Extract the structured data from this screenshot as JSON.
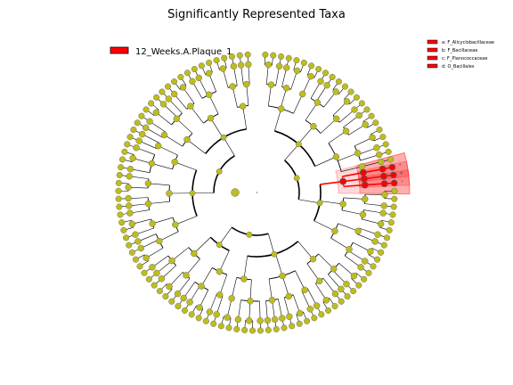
{
  "chart_data": {
    "type": "cladogram",
    "title": "Significantly Represented Taxa",
    "group_legend": {
      "label": "12_Weeks.A.Plaque_1",
      "color": "#ff0000"
    },
    "key": [
      {
        "letter": "a",
        "label": "a: F_Alicyclobacillaceae"
      },
      {
        "letter": "b",
        "label": "b: F_Bacillaceae"
      },
      {
        "letter": "c",
        "label": "c: F_Planococcaceae"
      },
      {
        "letter": "d",
        "label": "d: O_Bacillales"
      }
    ],
    "highlight_color": "#ff0000",
    "node_color": "#bdbd1f"
  }
}
